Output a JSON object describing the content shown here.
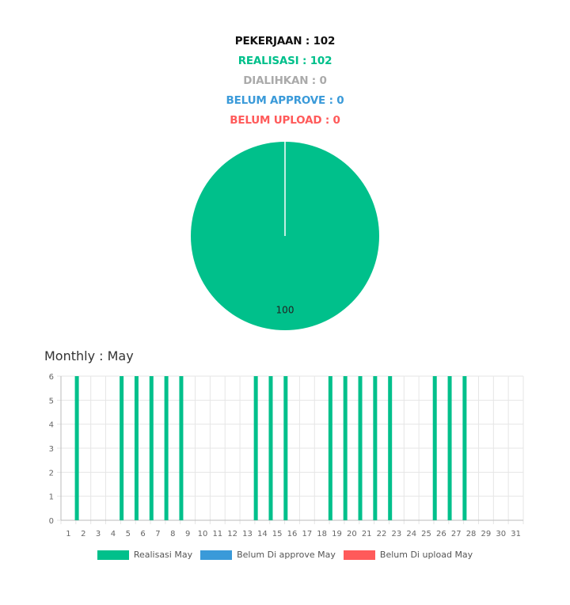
{
  "stats": [
    {
      "label": "PEKERJAAN : 102",
      "color": "#111111"
    },
    {
      "label": "REALISASI : 102",
      "color": "#00c08b"
    },
    {
      "label": "DIALIHKAN : 0",
      "color": "#aaaaaa"
    },
    {
      "label": "BELUM APPROVE : 0",
      "color": "#3a9ad9"
    },
    {
      "label": "BELUM UPLOAD : 0",
      "color": "#ff5a5a"
    }
  ],
  "monthly_title": "Monthly : May",
  "chart_data": [
    {
      "type": "pie",
      "slices": [
        {
          "value": 100,
          "label": "100",
          "color": "#00c08b"
        }
      ]
    },
    {
      "type": "bar",
      "categories": [
        "1",
        "2",
        "3",
        "4",
        "5",
        "6",
        "7",
        "8",
        "9",
        "10",
        "11",
        "12",
        "13",
        "14",
        "15",
        "16",
        "17",
        "18",
        "19",
        "20",
        "21",
        "22",
        "23",
        "24",
        "25",
        "26",
        "27",
        "28",
        "29",
        "30",
        "31"
      ],
      "y_ticks": [
        "0",
        "1",
        "2",
        "3",
        "4",
        "5",
        "6"
      ],
      "ylim": [
        0,
        6
      ],
      "grid": true,
      "legend_position": "bottom",
      "series": [
        {
          "name": "Realisasi May",
          "color": "#00c08b",
          "values": [
            0,
            6,
            0,
            0,
            6,
            6,
            6,
            6,
            6,
            0,
            0,
            0,
            0,
            6,
            6,
            6,
            0,
            0,
            6,
            6,
            6,
            6,
            6,
            0,
            0,
            6,
            6,
            6,
            0,
            0,
            0
          ]
        },
        {
          "name": "Belum Di approve May",
          "color": "#3a9ad9",
          "values": [
            0,
            0,
            0,
            0,
            0,
            0,
            0,
            0,
            0,
            0,
            0,
            0,
            0,
            0,
            0,
            0,
            0,
            0,
            0,
            0,
            0,
            0,
            0,
            0,
            0,
            0,
            0,
            0,
            0,
            0,
            0
          ]
        },
        {
          "name": "Belum Di upload May",
          "color": "#ff5a5a",
          "values": [
            0,
            0,
            0,
            0,
            0,
            0,
            0,
            0,
            0,
            0,
            0,
            0,
            0,
            0,
            0,
            0,
            0,
            0,
            0,
            0,
            0,
            0,
            0,
            0,
            0,
            0,
            0,
            0,
            0,
            0,
            0
          ]
        }
      ]
    }
  ]
}
